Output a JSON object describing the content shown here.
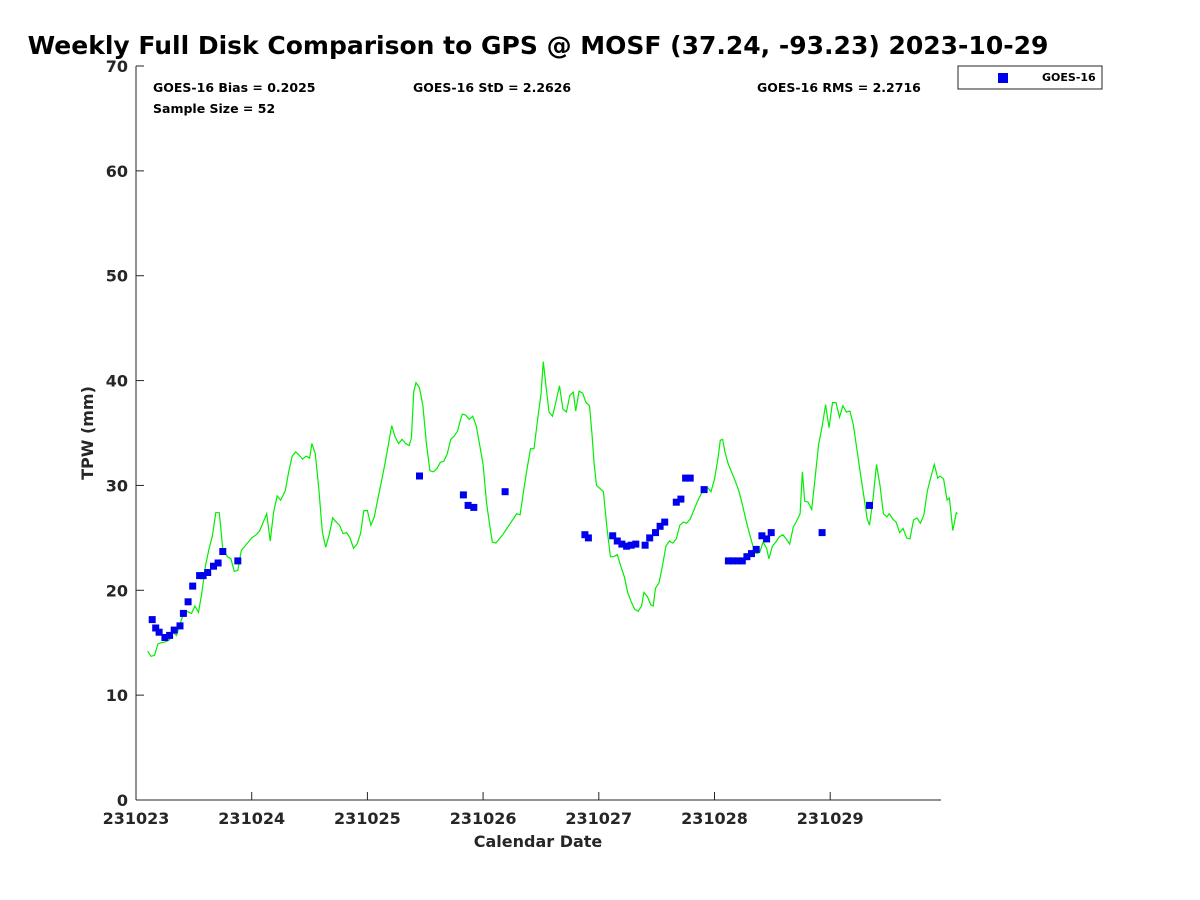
{
  "chart_data": {
    "type": "scatter",
    "title": "Weekly Full Disk Comparison to GPS @ MOSF (37.24, -93.23) 2023-10-29",
    "xlabel": "Calendar Date",
    "ylabel": "TPW (mm)",
    "xlim": [
      0,
      6.96
    ],
    "ylim": [
      0,
      70
    ],
    "x_ticks": [
      0,
      1,
      2,
      3,
      4,
      5,
      6
    ],
    "x_tick_labels": [
      "231023",
      "231024",
      "231025",
      "231026",
      "231027",
      "231028",
      "231029"
    ],
    "y_ticks": [
      0,
      10,
      20,
      30,
      40,
      50,
      60,
      70
    ],
    "y_tick_labels": [
      "0",
      "10",
      "20",
      "30",
      "40",
      "50",
      "60",
      "70"
    ],
    "grid": false,
    "legend_position": "outside top-right",
    "stats": {
      "bias": "GOES-16 Bias = 0.2025",
      "std": "GOES-16 StD = 2.2626",
      "rms": "GOES-16 RMS = 2.2716",
      "sample": "Sample Size = 52"
    },
    "series": [
      {
        "name": "GPS",
        "kind": "line",
        "color": "#00ee00",
        "points": [
          [
            0.1,
            14.2
          ],
          [
            0.13,
            13.7
          ],
          [
            0.16,
            13.8
          ],
          [
            0.19,
            14.9
          ],
          [
            0.22,
            15.0
          ],
          [
            0.26,
            15.1
          ],
          [
            0.29,
            15.3
          ],
          [
            0.32,
            16.0
          ],
          [
            0.35,
            15.7
          ],
          [
            0.38,
            16.8
          ],
          [
            0.41,
            17.7
          ],
          [
            0.44,
            18.0
          ],
          [
            0.48,
            17.8
          ],
          [
            0.51,
            18.5
          ],
          [
            0.54,
            17.9
          ],
          [
            0.57,
            19.8
          ],
          [
            0.6,
            22.3
          ],
          [
            0.63,
            23.9
          ],
          [
            0.66,
            25.2
          ],
          [
            0.69,
            27.4
          ],
          [
            0.72,
            27.4
          ],
          [
            0.75,
            23.9
          ],
          [
            0.79,
            23.2
          ],
          [
            0.82,
            23.0
          ],
          [
            0.85,
            21.8
          ],
          [
            0.88,
            21.9
          ],
          [
            0.91,
            23.8
          ],
          [
            0.94,
            24.2
          ],
          [
            0.97,
            24.6
          ],
          [
            1.0,
            25.0
          ],
          [
            1.04,
            25.3
          ],
          [
            1.07,
            25.7
          ],
          [
            1.1,
            26.5
          ],
          [
            1.13,
            27.3
          ],
          [
            1.16,
            24.7
          ],
          [
            1.19,
            27.5
          ],
          [
            1.22,
            29.0
          ],
          [
            1.25,
            28.6
          ],
          [
            1.29,
            29.5
          ],
          [
            1.32,
            31.3
          ],
          [
            1.35,
            32.8
          ],
          [
            1.38,
            33.2
          ],
          [
            1.41,
            32.9
          ],
          [
            1.44,
            32.5
          ],
          [
            1.47,
            32.8
          ],
          [
            1.5,
            32.6
          ],
          [
            1.52,
            34.0
          ],
          [
            1.55,
            33.0
          ],
          [
            1.58,
            29.7
          ],
          [
            1.61,
            25.6
          ],
          [
            1.64,
            24.1
          ],
          [
            1.67,
            25.3
          ],
          [
            1.7,
            26.9
          ],
          [
            1.73,
            26.5
          ],
          [
            1.76,
            26.2
          ],
          [
            1.79,
            25.4
          ],
          [
            1.82,
            25.5
          ],
          [
            1.85,
            25.0
          ],
          [
            1.88,
            24.0
          ],
          [
            1.91,
            24.4
          ],
          [
            1.94,
            25.4
          ],
          [
            1.97,
            27.6
          ],
          [
            2.0,
            27.6
          ],
          [
            2.03,
            26.2
          ],
          [
            2.06,
            27.0
          ],
          [
            2.09,
            28.7
          ],
          [
            2.12,
            30.3
          ],
          [
            2.15,
            32.0
          ],
          [
            2.18,
            33.8
          ],
          [
            2.21,
            35.7
          ],
          [
            2.24,
            34.6
          ],
          [
            2.27,
            34.0
          ],
          [
            2.3,
            34.4
          ],
          [
            2.33,
            34.0
          ],
          [
            2.36,
            33.8
          ],
          [
            2.38,
            34.5
          ],
          [
            2.4,
            38.9
          ],
          [
            2.42,
            39.8
          ],
          [
            2.45,
            39.3
          ],
          [
            2.48,
            37.6
          ],
          [
            2.51,
            34.0
          ],
          [
            2.54,
            31.4
          ],
          [
            2.57,
            31.3
          ],
          [
            2.6,
            31.6
          ],
          [
            2.63,
            32.2
          ],
          [
            2.66,
            32.3
          ],
          [
            2.69,
            33.0
          ],
          [
            2.72,
            34.4
          ],
          [
            2.75,
            34.7
          ],
          [
            2.78,
            35.2
          ],
          [
            2.8,
            36.1
          ],
          [
            2.82,
            36.8
          ],
          [
            2.85,
            36.7
          ],
          [
            2.88,
            36.3
          ],
          [
            2.91,
            36.6
          ],
          [
            2.94,
            35.7
          ],
          [
            2.97,
            33.9
          ],
          [
            3.0,
            32.0
          ],
          [
            3.03,
            28.3
          ],
          [
            3.06,
            26.0
          ],
          [
            3.08,
            24.6
          ],
          [
            3.11,
            24.5
          ],
          [
            3.14,
            24.9
          ],
          [
            3.17,
            25.3
          ],
          [
            3.2,
            25.8
          ],
          [
            3.23,
            26.3
          ],
          [
            3.26,
            26.8
          ],
          [
            3.29,
            27.3
          ],
          [
            3.32,
            27.2
          ],
          [
            3.35,
            29.5
          ],
          [
            3.38,
            31.6
          ],
          [
            3.41,
            33.5
          ],
          [
            3.44,
            33.5
          ],
          [
            3.47,
            36.2
          ],
          [
            3.5,
            38.7
          ],
          [
            3.52,
            41.8
          ],
          [
            3.54,
            39.8
          ],
          [
            3.57,
            37.0
          ],
          [
            3.6,
            36.6
          ],
          [
            3.63,
            38.0
          ],
          [
            3.66,
            39.5
          ],
          [
            3.69,
            37.3
          ],
          [
            3.72,
            37.0
          ],
          [
            3.75,
            38.6
          ],
          [
            3.78,
            38.9
          ],
          [
            3.8,
            37.1
          ],
          [
            3.83,
            39.0
          ],
          [
            3.86,
            38.8
          ],
          [
            3.89,
            37.9
          ],
          [
            3.92,
            37.6
          ],
          [
            3.94,
            35.0
          ],
          [
            3.96,
            32.0
          ],
          [
            3.98,
            30.0
          ],
          [
            4.01,
            29.7
          ],
          [
            4.04,
            29.4
          ],
          [
            4.07,
            26.0
          ],
          [
            4.1,
            23.2
          ],
          [
            4.13,
            23.2
          ],
          [
            4.16,
            23.4
          ],
          [
            4.19,
            22.3
          ],
          [
            4.22,
            21.3
          ],
          [
            4.25,
            19.8
          ],
          [
            4.28,
            18.9
          ],
          [
            4.31,
            18.2
          ],
          [
            4.34,
            18.0
          ],
          [
            4.37,
            18.5
          ],
          [
            4.39,
            19.8
          ],
          [
            4.42,
            19.4
          ],
          [
            4.45,
            18.6
          ],
          [
            4.47,
            18.5
          ],
          [
            4.49,
            20.2
          ],
          [
            4.52,
            20.7
          ],
          [
            4.55,
            22.3
          ],
          [
            4.58,
            24.2
          ],
          [
            4.61,
            24.7
          ],
          [
            4.64,
            24.5
          ],
          [
            4.67,
            24.9
          ],
          [
            4.7,
            26.2
          ],
          [
            4.73,
            26.5
          ],
          [
            4.76,
            26.4
          ],
          [
            4.79,
            26.8
          ],
          [
            4.82,
            27.6
          ],
          [
            4.85,
            28.4
          ],
          [
            4.88,
            29.1
          ],
          [
            4.91,
            29.6
          ],
          [
            4.94,
            29.8
          ],
          [
            4.97,
            29.4
          ],
          [
            5.0,
            30.6
          ],
          [
            5.03,
            32.6
          ],
          [
            5.05,
            34.3
          ],
          [
            5.07,
            34.4
          ],
          [
            5.09,
            33.2
          ],
          [
            5.12,
            32.0
          ],
          [
            5.15,
            31.2
          ],
          [
            5.18,
            30.4
          ],
          [
            5.21,
            29.5
          ],
          [
            5.24,
            28.2
          ],
          [
            5.27,
            26.8
          ],
          [
            5.3,
            25.5
          ],
          [
            5.33,
            24.3
          ],
          [
            5.36,
            23.5
          ],
          [
            5.39,
            23.6
          ],
          [
            5.42,
            24.6
          ],
          [
            5.45,
            24.0
          ],
          [
            5.47,
            23.0
          ],
          [
            5.5,
            24.2
          ],
          [
            5.53,
            24.6
          ],
          [
            5.56,
            25.1
          ],
          [
            5.59,
            25.3
          ],
          [
            5.62,
            24.9
          ],
          [
            5.65,
            24.4
          ],
          [
            5.68,
            26.0
          ],
          [
            5.71,
            26.6
          ],
          [
            5.74,
            27.3
          ],
          [
            5.76,
            31.3
          ],
          [
            5.78,
            28.5
          ],
          [
            5.81,
            28.4
          ],
          [
            5.84,
            27.7
          ],
          [
            5.87,
            30.8
          ],
          [
            5.9,
            33.9
          ],
          [
            5.93,
            35.6
          ],
          [
            5.96,
            37.7
          ],
          [
            5.99,
            35.5
          ],
          [
            6.02,
            37.9
          ],
          [
            6.05,
            37.9
          ],
          [
            6.08,
            36.5
          ],
          [
            6.11,
            37.6
          ],
          [
            6.14,
            37.0
          ],
          [
            6.17,
            37.1
          ],
          [
            6.2,
            35.8
          ],
          [
            6.23,
            33.5
          ],
          [
            6.26,
            31.2
          ],
          [
            6.29,
            29.0
          ],
          [
            6.32,
            26.8
          ],
          [
            6.34,
            26.2
          ],
          [
            6.37,
            28.7
          ],
          [
            6.4,
            32.0
          ],
          [
            6.43,
            30.0
          ],
          [
            6.46,
            27.3
          ],
          [
            6.49,
            27.0
          ],
          [
            6.51,
            27.3
          ],
          [
            6.54,
            26.8
          ],
          [
            6.57,
            26.5
          ],
          [
            6.6,
            25.5
          ],
          [
            6.63,
            25.9
          ],
          [
            6.66,
            25.0
          ],
          [
            6.69,
            24.9
          ],
          [
            6.72,
            26.7
          ],
          [
            6.75,
            26.9
          ],
          [
            6.78,
            26.4
          ],
          [
            6.81,
            27.2
          ],
          [
            6.84,
            29.5
          ],
          [
            6.87,
            30.8
          ],
          [
            6.9,
            32.0
          ],
          [
            6.93,
            30.7
          ],
          [
            6.95,
            30.9
          ],
          [
            6.98,
            30.6
          ],
          [
            7.01,
            28.6
          ],
          [
            7.03,
            28.8
          ],
          [
            7.06,
            25.7
          ],
          [
            7.09,
            27.4
          ],
          [
            7.1,
            27.3
          ]
        ]
      },
      {
        "name": "GOES-16",
        "kind": "scatter",
        "color": "#0000ee",
        "points": [
          [
            0.14,
            17.2
          ],
          [
            0.17,
            16.4
          ],
          [
            0.2,
            16.0
          ],
          [
            0.25,
            15.5
          ],
          [
            0.29,
            15.7
          ],
          [
            0.33,
            16.2
          ],
          [
            0.38,
            16.6
          ],
          [
            0.41,
            17.8
          ],
          [
            0.45,
            18.9
          ],
          [
            0.49,
            20.4
          ],
          [
            0.55,
            21.4
          ],
          [
            0.58,
            21.4
          ],
          [
            0.62,
            21.7
          ],
          [
            0.67,
            22.3
          ],
          [
            0.71,
            22.6
          ],
          [
            0.75,
            23.7
          ],
          [
            0.88,
            22.8
          ],
          [
            2.45,
            30.9
          ],
          [
            2.83,
            29.1
          ],
          [
            2.87,
            28.1
          ],
          [
            2.92,
            27.9
          ],
          [
            3.19,
            29.4
          ],
          [
            3.88,
            25.3
          ],
          [
            3.91,
            25.0
          ],
          [
            4.12,
            25.2
          ],
          [
            4.16,
            24.7
          ],
          [
            4.2,
            24.4
          ],
          [
            4.24,
            24.2
          ],
          [
            4.28,
            24.3
          ],
          [
            4.32,
            24.4
          ],
          [
            4.4,
            24.3
          ],
          [
            4.44,
            25.0
          ],
          [
            4.49,
            25.5
          ],
          [
            4.53,
            26.1
          ],
          [
            4.57,
            26.5
          ],
          [
            4.67,
            28.4
          ],
          [
            4.71,
            28.7
          ],
          [
            4.75,
            30.7
          ],
          [
            4.79,
            30.7
          ],
          [
            4.91,
            29.6
          ],
          [
            5.12,
            22.8
          ],
          [
            5.16,
            22.8
          ],
          [
            5.2,
            22.8
          ],
          [
            5.24,
            22.8
          ],
          [
            5.28,
            23.2
          ],
          [
            5.32,
            23.5
          ],
          [
            5.36,
            23.9
          ],
          [
            5.41,
            25.2
          ],
          [
            5.45,
            24.9
          ],
          [
            5.49,
            25.5
          ],
          [
            5.93,
            25.5
          ],
          [
            6.34,
            28.1
          ]
        ]
      }
    ]
  }
}
